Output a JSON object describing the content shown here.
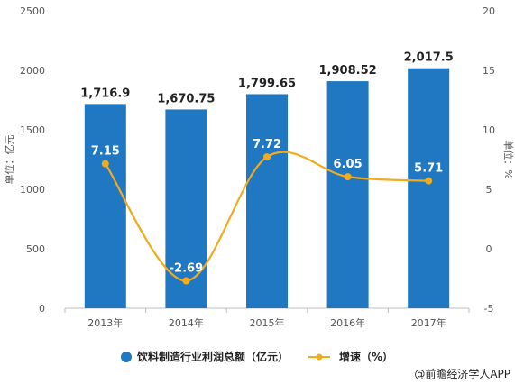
{
  "chart_data": {
    "type": "bar",
    "categories": [
      "2013年",
      "2014年",
      "2015年",
      "2016年",
      "2017年"
    ],
    "series": [
      {
        "name": "饮料制造行业利润总额（亿元）",
        "type": "bar",
        "axis": "left",
        "values": [
          1716.9,
          1670.75,
          1799.65,
          1908.52,
          2017.5
        ],
        "labels": [
          "1,716.9",
          "1,670.75",
          "1,799.65",
          "1,908.52",
          "2,017.5"
        ],
        "color": "#1f78c1"
      },
      {
        "name": "增速（%）",
        "type": "line",
        "axis": "right",
        "values": [
          7.15,
          -2.69,
          7.72,
          6.05,
          5.71
        ],
        "labels": [
          "7.15",
          "-2.69",
          "7.72",
          "6.05",
          "5.71"
        ],
        "color": "#f0ac1e"
      }
    ],
    "ylabel": "单位：亿元",
    "ylabel_right": "单位：%",
    "ylim": [
      0,
      2500
    ],
    "ylim_right": [
      -5,
      20
    ],
    "yticks": [
      0,
      500,
      1000,
      1500,
      2000,
      2500
    ],
    "yticks_right": [
      -5,
      0,
      5,
      10,
      15,
      20
    ],
    "grid": false,
    "legend_position": "bottom"
  },
  "credit": "@前瞻经济学人APP"
}
